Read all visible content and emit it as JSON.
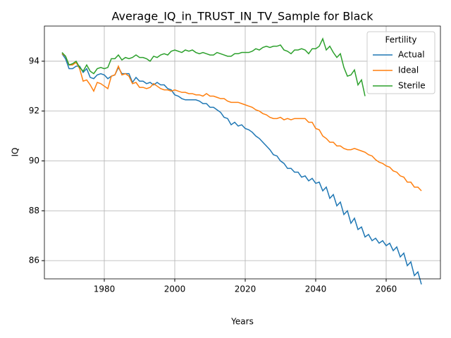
{
  "chart_data": {
    "type": "line",
    "title": "Average_IQ_in_TRUST_IN_TV_Sample for Black",
    "x_label": "Years",
    "y_label": "IQ",
    "legend_title": "Fertility",
    "legend": "upper right",
    "grid": true,
    "xlim": [
      1963,
      2075.4
    ],
    "ylim": [
      85.27,
      95.41
    ],
    "xticks": [
      1980,
      2000,
      2020,
      2040,
      2060
    ],
    "yticks": [
      86,
      88,
      90,
      92,
      94
    ],
    "x": [
      1968,
      1969,
      1970,
      1971,
      1972,
      1973,
      1974,
      1975,
      1976,
      1977,
      1978,
      1979,
      1980,
      1981,
      1982,
      1983,
      1984,
      1985,
      1986,
      1987,
      1988,
      1989,
      1990,
      1991,
      1992,
      1993,
      1994,
      1995,
      1996,
      1997,
      1998,
      1999,
      2000,
      2001,
      2002,
      2003,
      2004,
      2005,
      2006,
      2007,
      2008,
      2009,
      2010,
      2011,
      2012,
      2013,
      2014,
      2015,
      2016,
      2017,
      2018,
      2019,
      2020,
      2021,
      2022,
      2023,
      2024,
      2025,
      2026,
      2027,
      2028,
      2029,
      2030,
      2031,
      2032,
      2033,
      2034,
      2035,
      2036,
      2037,
      2038,
      2039,
      2040,
      2041,
      2042,
      2043,
      2044,
      2045,
      2046,
      2047,
      2048,
      2049,
      2050,
      2051,
      2052,
      2053,
      2054,
      2055,
      2056,
      2057,
      2058,
      2059,
      2060,
      2061,
      2062,
      2063,
      2064,
      2065,
      2066,
      2067,
      2068,
      2069,
      2070
    ],
    "series": [
      {
        "name": "Actual",
        "color": "#1f77b4",
        "values": [
          94.3,
          94.1,
          93.7,
          93.7,
          93.8,
          93.8,
          93.55,
          93.7,
          93.35,
          93.3,
          93.45,
          93.5,
          93.45,
          93.3,
          93.4,
          93.45,
          93.75,
          93.5,
          93.5,
          93.5,
          93.15,
          93.35,
          93.2,
          93.2,
          93.1,
          93.15,
          93.05,
          93.15,
          93.05,
          93.05,
          92.9,
          92.85,
          92.65,
          92.6,
          92.5,
          92.45,
          92.45,
          92.45,
          92.45,
          92.4,
          92.3,
          92.3,
          92.15,
          92.15,
          92.05,
          91.95,
          91.75,
          91.7,
          91.45,
          91.55,
          91.4,
          91.45,
          91.3,
          91.25,
          91.15,
          91.0,
          90.9,
          90.75,
          90.6,
          90.45,
          90.25,
          90.2,
          90.0,
          89.9,
          89.7,
          89.7,
          89.55,
          89.55,
          89.35,
          89.4,
          89.2,
          89.3,
          89.1,
          89.15,
          88.8,
          88.95,
          88.5,
          88.65,
          88.2,
          88.35,
          87.85,
          88.0,
          87.5,
          87.7,
          87.25,
          87.35,
          86.95,
          87.05,
          86.8,
          86.9,
          86.7,
          86.8,
          86.6,
          86.7,
          86.4,
          86.55,
          86.15,
          86.3,
          85.8,
          85.95,
          85.4,
          85.55,
          85.05
        ]
      },
      {
        "name": "Ideal",
        "color": "#ff7f0e",
        "values": [
          94.3,
          94.2,
          93.85,
          93.85,
          93.95,
          93.7,
          93.2,
          93.25,
          93.05,
          92.8,
          93.15,
          93.1,
          93.0,
          92.9,
          93.4,
          93.45,
          93.8,
          93.45,
          93.5,
          93.4,
          93.1,
          93.15,
          92.95,
          92.95,
          92.9,
          92.95,
          93.1,
          93.0,
          92.9,
          92.85,
          92.85,
          92.8,
          92.85,
          92.8,
          92.75,
          92.75,
          92.7,
          92.7,
          92.65,
          92.65,
          92.6,
          92.7,
          92.6,
          92.6,
          92.55,
          92.5,
          92.5,
          92.4,
          92.35,
          92.35,
          92.35,
          92.3,
          92.25,
          92.2,
          92.15,
          92.05,
          92.0,
          91.9,
          91.85,
          91.75,
          91.7,
          91.7,
          91.75,
          91.65,
          91.7,
          91.65,
          91.7,
          91.7,
          91.7,
          91.7,
          91.55,
          91.55,
          91.3,
          91.25,
          91.0,
          90.9,
          90.75,
          90.75,
          90.6,
          90.6,
          90.5,
          90.45,
          90.45,
          90.5,
          90.45,
          90.4,
          90.35,
          90.25,
          90.2,
          90.05,
          89.95,
          89.9,
          89.8,
          89.75,
          89.6,
          89.55,
          89.4,
          89.35,
          89.15,
          89.15,
          88.95,
          88.95,
          88.8
        ]
      },
      {
        "name": "Sterile",
        "color": "#2ca02c",
        "values": [
          94.35,
          94.2,
          93.85,
          93.9,
          94.0,
          93.75,
          93.6,
          93.85,
          93.6,
          93.5,
          93.7,
          93.75,
          93.7,
          93.75,
          94.1,
          94.1,
          94.25,
          94.05,
          94.15,
          94.1,
          94.15,
          94.25,
          94.15,
          94.15,
          94.1,
          94.0,
          94.2,
          94.15,
          94.25,
          94.3,
          94.25,
          94.4,
          94.45,
          94.4,
          94.35,
          94.45,
          94.4,
          94.45,
          94.35,
          94.3,
          94.35,
          94.3,
          94.25,
          94.25,
          94.35,
          94.3,
          94.25,
          94.2,
          94.2,
          94.3,
          94.3,
          94.35,
          94.35,
          94.35,
          94.4,
          94.5,
          94.45,
          94.55,
          94.6,
          94.55,
          94.6,
          94.6,
          94.65,
          94.45,
          94.4,
          94.3,
          94.45,
          94.45,
          94.5,
          94.45,
          94.3,
          94.5,
          94.5,
          94.6,
          94.9,
          94.45,
          94.6,
          94.35,
          94.15,
          94.3,
          93.75,
          93.4,
          93.45,
          93.65,
          93.05,
          93.25,
          92.6,
          null,
          null,
          null,
          null,
          null,
          null,
          null,
          null,
          null,
          null,
          null,
          null,
          null,
          null,
          null,
          null
        ]
      }
    ]
  }
}
